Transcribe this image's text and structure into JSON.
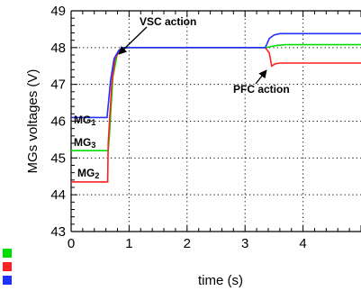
{
  "chart_data": {
    "type": "line",
    "xlabel": "time (s)",
    "ylabel": "MGs voltages (V)",
    "xlim": [
      0,
      5.0
    ],
    "ylim": [
      43,
      49
    ],
    "xticks": [
      0,
      1,
      2,
      3,
      4
    ],
    "yticks": [
      43,
      44,
      45,
      46,
      47,
      48,
      49
    ],
    "grid": true,
    "legend": "bottom-left",
    "series": [
      {
        "color": "#00e000",
        "x": [
          0,
          0.64,
          0.66,
          0.72,
          0.8,
          0.9,
          1.0,
          1.2,
          3.36,
          3.45,
          3.55,
          3.7,
          5.0
        ],
        "y": [
          45.2,
          45.2,
          45.6,
          47.2,
          47.85,
          47.98,
          48.0,
          48.0,
          48.0,
          48.03,
          48.06,
          48.08,
          48.08
        ]
      },
      {
        "color": "#ff2020",
        "x": [
          0,
          0.63,
          0.64,
          0.7,
          0.76,
          0.84,
          0.95,
          1.05,
          1.2,
          3.35,
          3.42,
          3.46,
          3.52,
          3.6,
          3.75,
          5.0
        ],
        "y": [
          44.35,
          44.35,
          45.4,
          47.0,
          47.7,
          47.95,
          48.0,
          48.0,
          48.0,
          48.0,
          47.85,
          47.5,
          47.56,
          47.58,
          47.58,
          47.58
        ]
      },
      {
        "color": "#2030ff",
        "x": [
          0,
          0.62,
          0.68,
          0.74,
          0.82,
          0.9,
          1.0,
          1.2,
          3.35,
          3.42,
          3.5,
          3.6,
          3.75,
          5.0
        ],
        "y": [
          46.1,
          46.1,
          47.1,
          47.7,
          47.92,
          48.0,
          48.0,
          48.0,
          48.0,
          48.25,
          48.34,
          48.38,
          48.38,
          48.38
        ]
      }
    ],
    "annotations": [
      {
        "text": "VSC action"
      },
      {
        "text": "PFC action"
      }
    ],
    "line_labels": [
      {
        "text": "MG1"
      },
      {
        "text": "MG3"
      },
      {
        "text": "MG2"
      }
    ]
  }
}
